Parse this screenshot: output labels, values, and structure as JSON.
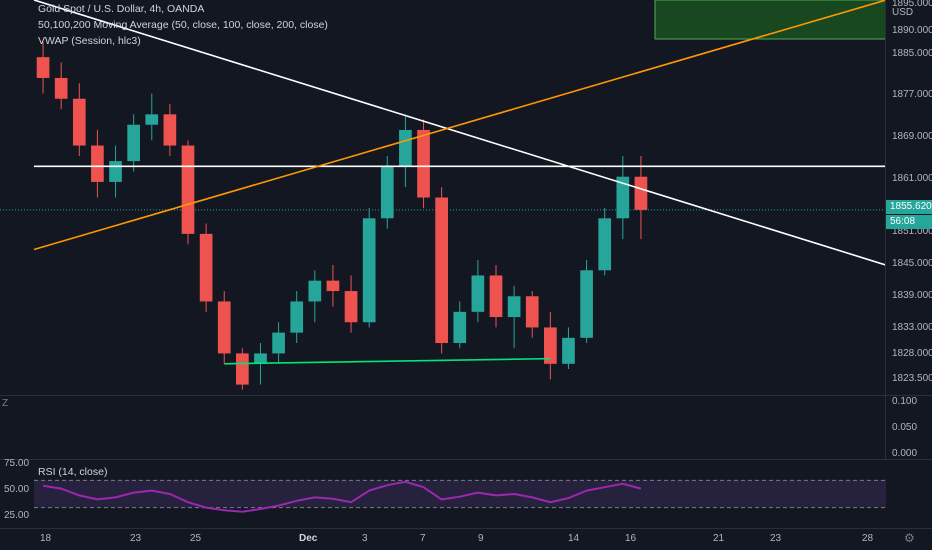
{
  "legend": {
    "symbol": "Gold Spot / U.S. Dollar, 4h, OANDA",
    "ma": "50,100,200 Moving Average (50, close, 100, close, 200, close)",
    "vwap": "VWAP (Session, hlc3)",
    "rsi": "RSI (14, close)"
  },
  "price_axis": {
    "currency": "USD",
    "labels": [
      "1895.000",
      "1890.000",
      "1885.000",
      "1877.000",
      "1869.000",
      "1861.000",
      "1851.000",
      "1845.000",
      "1839.000",
      "1833.000",
      "1828.000",
      "1823.500"
    ],
    "last_price": "1855.620",
    "countdown": "56:08"
  },
  "mid_axis": {
    "labels": [
      "0.100",
      "0.050",
      "0.000"
    ]
  },
  "rsi_axis": {
    "labels": [
      "75.00",
      "50.00",
      "25.00"
    ]
  },
  "x_axis": {
    "labels": [
      "18",
      "23",
      "25",
      "Dec",
      "3",
      "7",
      "9",
      "14",
      "16",
      "21",
      "23",
      "28"
    ]
  },
  "buttons": {
    "goto_left": "Z",
    "auto": "⚙"
  },
  "colors": {
    "background": "#131722",
    "up": "#26a69a",
    "down": "#ef5350",
    "trend_white": "#ffffff",
    "trend_orange": "#ff9800",
    "support_green": "#00e676",
    "rsi_line": "#9c27b0",
    "target_box": "#1b5e20"
  },
  "chart_data": {
    "type": "candlestick",
    "title": "Gold Spot / U.S. Dollar, 4h, OANDA",
    "x_labels": [
      "18",
      "23",
      "25",
      "Dec",
      "3",
      "7",
      "9",
      "14",
      "16",
      "21",
      "23",
      "28"
    ],
    "y_range": [
      1820,
      1896
    ],
    "last_price": 1855.62,
    "candles": [
      {
        "o": 1885,
        "h": 1888,
        "l": 1878,
        "c": 1881
      },
      {
        "o": 1881,
        "h": 1884,
        "l": 1875,
        "c": 1877
      },
      {
        "o": 1877,
        "h": 1880,
        "l": 1866,
        "c": 1868
      },
      {
        "o": 1868,
        "h": 1871,
        "l": 1858,
        "c": 1861
      },
      {
        "o": 1861,
        "h": 1868,
        "l": 1858,
        "c": 1865
      },
      {
        "o": 1865,
        "h": 1874,
        "l": 1863,
        "c": 1872
      },
      {
        "o": 1872,
        "h": 1878,
        "l": 1869,
        "c": 1874
      },
      {
        "o": 1874,
        "h": 1876,
        "l": 1866,
        "c": 1868
      },
      {
        "o": 1868,
        "h": 1869,
        "l": 1849,
        "c": 1851
      },
      {
        "o": 1851,
        "h": 1853,
        "l": 1836,
        "c": 1838
      },
      {
        "o": 1838,
        "h": 1840,
        "l": 1826,
        "c": 1828
      },
      {
        "o": 1828,
        "h": 1829,
        "l": 1821,
        "c": 1822
      },
      {
        "o": 1826,
        "h": 1830,
        "l": 1822,
        "c": 1828
      },
      {
        "o": 1828,
        "h": 1834,
        "l": 1826,
        "c": 1832
      },
      {
        "o": 1832,
        "h": 1840,
        "l": 1830,
        "c": 1838
      },
      {
        "o": 1838,
        "h": 1844,
        "l": 1834,
        "c": 1842
      },
      {
        "o": 1842,
        "h": 1845,
        "l": 1837,
        "c": 1840
      },
      {
        "o": 1840,
        "h": 1843,
        "l": 1832,
        "c": 1834
      },
      {
        "o": 1834,
        "h": 1856,
        "l": 1833,
        "c": 1854
      },
      {
        "o": 1854,
        "h": 1866,
        "l": 1852,
        "c": 1864
      },
      {
        "o": 1864,
        "h": 1874,
        "l": 1860,
        "c": 1871
      },
      {
        "o": 1871,
        "h": 1873,
        "l": 1856,
        "c": 1858
      },
      {
        "o": 1858,
        "h": 1860,
        "l": 1828,
        "c": 1830
      },
      {
        "o": 1830,
        "h": 1838,
        "l": 1829,
        "c": 1836
      },
      {
        "o": 1836,
        "h": 1846,
        "l": 1834,
        "c": 1843
      },
      {
        "o": 1843,
        "h": 1845,
        "l": 1833,
        "c": 1835
      },
      {
        "o": 1835,
        "h": 1841,
        "l": 1829,
        "c": 1839
      },
      {
        "o": 1839,
        "h": 1840,
        "l": 1831,
        "c": 1833
      },
      {
        "o": 1833,
        "h": 1836,
        "l": 1823,
        "c": 1826
      },
      {
        "o": 1826,
        "h": 1833,
        "l": 1825,
        "c": 1831
      },
      {
        "o": 1831,
        "h": 1846,
        "l": 1830,
        "c": 1844
      },
      {
        "o": 1844,
        "h": 1856,
        "l": 1843,
        "c": 1854
      },
      {
        "o": 1854,
        "h": 1866,
        "l": 1850,
        "c": 1862
      },
      {
        "o": 1862,
        "h": 1866,
        "l": 1850,
        "c": 1855.62
      }
    ],
    "series": [
      {
        "name": "RSI (14, close)",
        "values": [
          62,
          58,
          48,
          42,
          45,
          52,
          55,
          50,
          38,
          30,
          26,
          24,
          28,
          33,
          40,
          45,
          43,
          38,
          55,
          63,
          68,
          60,
          42,
          46,
          52,
          48,
          50,
          45,
          38,
          44,
          55,
          60,
          65,
          58
        ]
      }
    ],
    "rsi_levels": [
      70,
      30
    ],
    "trendlines": [
      {
        "color": "white",
        "from": [
          0,
          1896
        ],
        "to": [
          40,
          1845
        ]
      },
      {
        "color": "white",
        "from": [
          0,
          1864
        ],
        "to": [
          40,
          1864
        ]
      },
      {
        "color": "orange",
        "from": [
          0,
          1848
        ],
        "to": [
          40,
          1896
        ]
      },
      {
        "color": "green",
        "from": [
          10,
          1826
        ],
        "to": [
          28,
          1827
        ]
      }
    ]
  }
}
